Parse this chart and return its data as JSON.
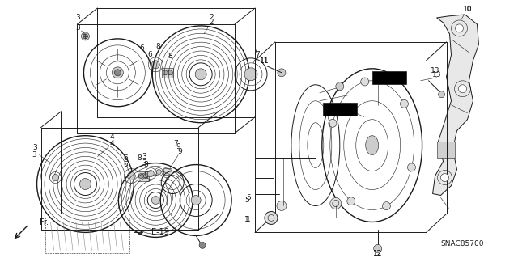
{
  "bg_color": "#ffffff",
  "diagram_code": "SNAC85700",
  "fig_w": 6.4,
  "fig_h": 3.19,
  "dpi": 100,
  "lw_thin": 0.5,
  "lw_med": 0.8,
  "lw_thick": 1.1
}
